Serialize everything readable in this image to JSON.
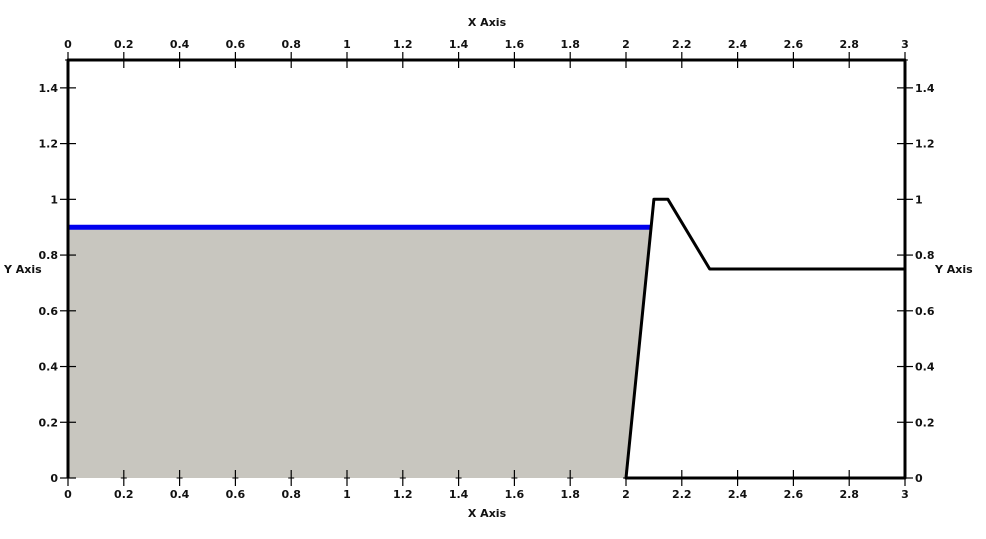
{
  "chart_data": {
    "type": "area",
    "xlabel": "X Axis",
    "ylabel": "Y Axis",
    "xlim": [
      0,
      3
    ],
    "ylim": [
      0,
      1.5
    ],
    "x_ticks": [
      "0",
      "0.2",
      "0.4",
      "0.6",
      "0.8",
      "1",
      "1.2",
      "1.4",
      "1.6",
      "1.8",
      "2",
      "2.2",
      "2.4",
      "2.6",
      "2.8",
      "3"
    ],
    "y_ticks": [
      "0",
      "0.2",
      "0.4",
      "0.6",
      "0.8",
      "1",
      "1.2",
      "1.4"
    ],
    "x_tick_values": [
      0,
      0.2,
      0.4,
      0.6,
      0.8,
      1,
      1.2,
      1.4,
      1.6,
      1.8,
      2,
      2.2,
      2.4,
      2.6,
      2.8,
      3
    ],
    "y_tick_values": [
      0,
      0.2,
      0.4,
      0.6,
      0.8,
      1,
      1.2,
      1.4
    ],
    "axes_on_all_sides": true,
    "grid": false,
    "filled_region": {
      "points": [
        [
          0,
          0
        ],
        [
          2,
          0
        ],
        [
          2.09,
          0.9
        ],
        [
          0,
          0.9
        ]
      ],
      "color": "#c8c6bf"
    },
    "water_surface": {
      "points": [
        [
          0,
          0.9
        ],
        [
          2.09,
          0.9
        ]
      ],
      "color": "#0000ee"
    },
    "boundary": {
      "points": [
        [
          0,
          0
        ],
        [
          0,
          1.5
        ],
        [
          3,
          1.5
        ],
        [
          3,
          0
        ],
        [
          2,
          0
        ],
        [
          2.1,
          1.0
        ],
        [
          2.15,
          1.0
        ],
        [
          2.3,
          0.75
        ],
        [
          3,
          0.75
        ]
      ],
      "color": "#000000"
    }
  }
}
